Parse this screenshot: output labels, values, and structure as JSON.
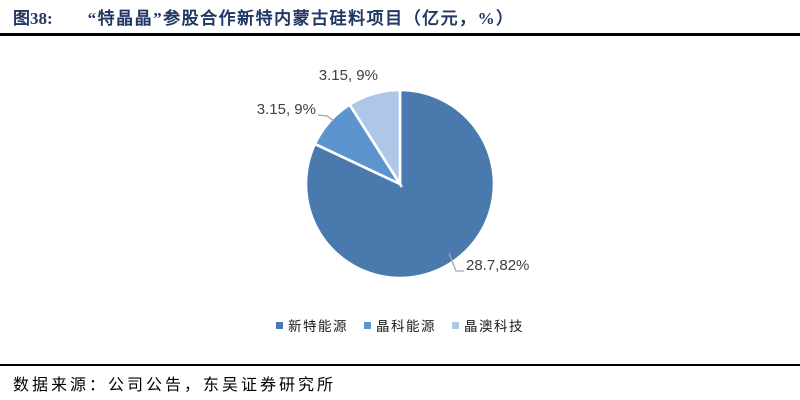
{
  "header": {
    "figure_label": "图38:",
    "title": "“特晶晶”参股合作新特内蒙古硅料项目（亿元，%）"
  },
  "chart_data": {
    "type": "pie",
    "title": "“特晶晶”参股合作新特内蒙古硅料项目（亿元，%）",
    "categories": [
      "新特能源",
      "晶科能源",
      "晶澳科技"
    ],
    "values": [
      28.7,
      3.15,
      3.15
    ],
    "percents": [
      82,
      9,
      9
    ],
    "slice_labels": [
      "28.7,82%",
      "3.15, 9%",
      "3.15, 9%"
    ],
    "colors": [
      "#4a79ad",
      "#5b94ce",
      "#aec6e8"
    ],
    "start_angle_deg": 0,
    "direction": "clockwise",
    "legend_position": "bottom",
    "label_color": "#404040",
    "leader_line_color": "#a6a6a6"
  },
  "footer": {
    "source": "数据来源：公司公告，东吴证券研究所"
  },
  "colors": {
    "title_navy": "#1f3864",
    "divider": "#000000",
    "background": "#ffffff"
  }
}
